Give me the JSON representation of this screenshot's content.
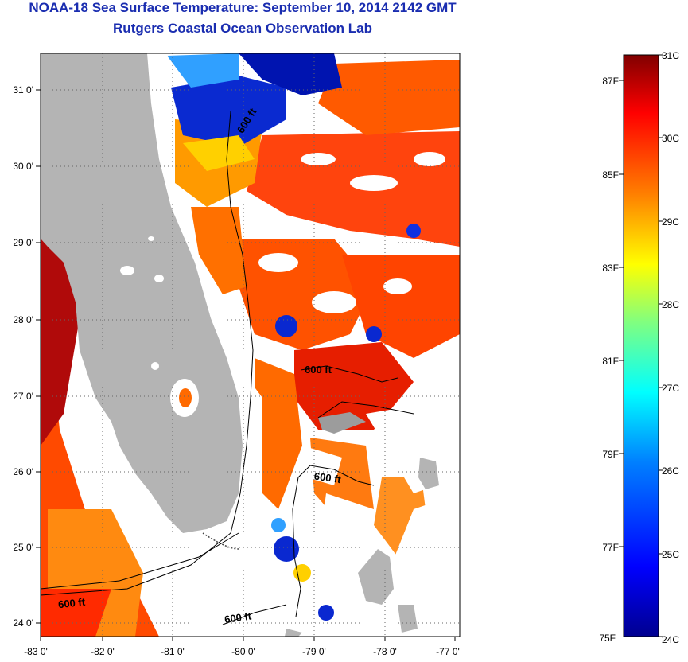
{
  "header": {
    "title": "NOAA-18 Sea Surface Temperature:  September 10, 2014 2142 GMT",
    "subtitle": "Rutgers Coastal Ocean Observation Lab"
  },
  "map": {
    "lon_ticks": [
      "-83 0'",
      "-82 0'",
      "-81 0'",
      "-80 0'",
      "-79 0'",
      "-78 0'",
      "-77 0'"
    ],
    "lat_ticks": [
      "31 0'",
      "30 0'",
      "29 0'",
      "28 0'",
      "27 0'",
      "26 0'",
      "25 0'",
      "24 0'"
    ],
    "contour_labels": [
      "600 ft",
      "600 ft",
      "600 ft",
      "600 ft",
      "600 ft"
    ],
    "land_color": "#b4b4b4",
    "grid": "dotted"
  },
  "colorbar": {
    "celsius_labels": [
      "31C",
      "30C",
      "29C",
      "28C",
      "27C",
      "26C",
      "25C",
      "24C"
    ],
    "fahrenheit_labels": [
      "87F",
      "85F",
      "83F",
      "81F",
      "79F",
      "77F",
      "75F"
    ],
    "range_celsius": [
      24,
      31
    ],
    "colormap": [
      "#00008f",
      "#0000ff",
      "#0080ff",
      "#00ffff",
      "#80ff80",
      "#ffff00",
      "#ff8000",
      "#ff0000",
      "#800000"
    ]
  }
}
